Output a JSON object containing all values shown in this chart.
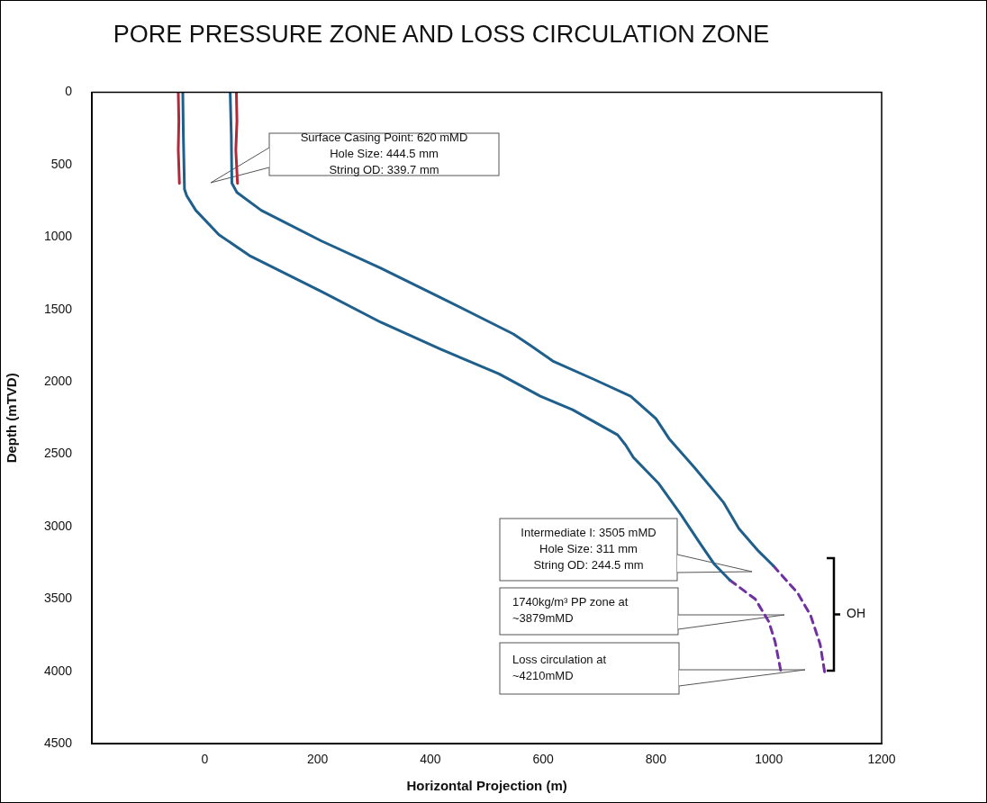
{
  "chart_data": {
    "type": "line",
    "title": "PORE PRESSURE ZONE AND LOSS CIRCULATION ZONE",
    "xlabel": "Horizontal Projection (m)",
    "ylabel": "Depth (mTVD)",
    "xlim": [
      -200,
      1200
    ],
    "xticks": [
      0,
      200,
      400,
      600,
      800,
      1000,
      1200
    ],
    "ylim": [
      4500,
      0
    ],
    "yticks": [
      0,
      500,
      1000,
      1500,
      2000,
      2500,
      3000,
      3500,
      4000,
      4500
    ],
    "grid": false,
    "legend": false,
    "marker": "none",
    "series": [
      {
        "color": "#b22a3a",
        "line_style": "solid",
        "x": [
          -47,
          -46,
          -47,
          -45
        ],
        "values": [
          0,
          200,
          400,
          630
        ]
      },
      {
        "color": "#b22a3a",
        "line_style": "solid",
        "x": [
          56,
          57,
          55,
          58
        ],
        "values": [
          0,
          200,
          400,
          630
        ]
      },
      {
        "color": "#1f5f8b",
        "line_style": "solid",
        "x": [
          -39,
          -38,
          -36,
          -32,
          -16,
          25,
          79,
          207,
          312,
          419,
          468,
          521,
          595,
          652,
          732,
          746,
          760,
          805,
          845,
          880,
          903,
          931
        ],
        "values": [
          0,
          300,
          670,
          716,
          816,
          984,
          1128,
          1377,
          1589,
          1776,
          1857,
          1944,
          2100,
          2193,
          2367,
          2436,
          2523,
          2704,
          2922,
          3127,
          3258,
          3370
        ]
      },
      {
        "color": "#1f5f8b",
        "line_style": "solid",
        "x": [
          45,
          47,
          48,
          57,
          100,
          207,
          312,
          419,
          547,
          578,
          617,
          692,
          755,
          800,
          823,
          868,
          920,
          947,
          982,
          1008
        ],
        "values": [
          0,
          300,
          629,
          692,
          816,
          1028,
          1215,
          1420,
          1670,
          1751,
          1857,
          1987,
          2100,
          2255,
          2392,
          2592,
          2835,
          3015,
          3171,
          3271
        ]
      },
      {
        "color": "#7030a0",
        "line_style": "dashed",
        "x": [
          931,
          976,
          1000,
          1011,
          1022
        ],
        "values": [
          3370,
          3501,
          3657,
          3794,
          4012
        ]
      },
      {
        "color": "#7030a0",
        "line_style": "dashed",
        "x": [
          1008,
          1051,
          1074,
          1091,
          1099
        ],
        "values": [
          3271,
          3458,
          3613,
          3813,
          4006
        ]
      }
    ],
    "annotations": [
      "Surface Casing Point: 620 mMD\nHole Size: 444.5 mm\nString OD: 339.7 mm",
      "Intermediate I: 3505 mMD\nHole Size: 311 mm\nString OD: 244.5 mm",
      "1740kg/m³ PP zone at\n~3879mMD",
      "Loss circulation at\n~4210mMD",
      "OH"
    ]
  }
}
